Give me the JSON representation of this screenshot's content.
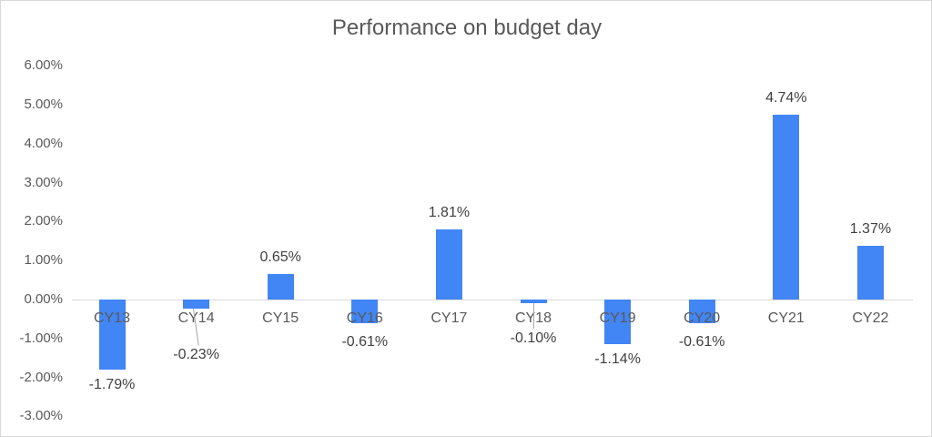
{
  "chart_data": {
    "type": "bar",
    "title": "Performance on budget day",
    "xlabel": "",
    "ylabel": "",
    "categories": [
      "CY13",
      "CY14",
      "CY15",
      "CY16",
      "CY17",
      "CY18",
      "CY19",
      "CY20",
      "CY21",
      "CY22"
    ],
    "values": [
      -1.79,
      -0.23,
      0.65,
      -0.61,
      1.81,
      -0.1,
      -1.14,
      -0.61,
      4.74,
      1.37
    ],
    "data_labels": [
      "-1.79%",
      "-0.23%",
      "0.65%",
      "-0.61%",
      "1.81%",
      "-0.10%",
      "-1.14%",
      "-0.61%",
      "4.74%",
      "1.37%"
    ],
    "yticks": [
      "6.00%",
      "5.00%",
      "4.00%",
      "3.00%",
      "2.00%",
      "1.00%",
      "0.00%",
      "-1.00%",
      "-2.00%",
      "-3.00%"
    ],
    "ylim": [
      -3,
      6
    ],
    "grid": false,
    "legend": null,
    "bar_color": "#4285f4"
  },
  "labels": {
    "title": "Performance on budget day",
    "yticks": [
      "6.00%",
      "5.00%",
      "4.00%",
      "3.00%",
      "2.00%",
      "1.00%",
      "0.00%",
      "-1.00%",
      "-2.00%",
      "-3.00%"
    ],
    "categories": [
      "CY13",
      "CY14",
      "CY15",
      "CY16",
      "CY17",
      "CY18",
      "CY19",
      "CY20",
      "CY21",
      "CY22"
    ],
    "data_labels": [
      "-1.79%",
      "-0.23%",
      "0.65%",
      "-0.61%",
      "1.81%",
      "-0.10%",
      "-1.14%",
      "-0.61%",
      "4.74%",
      "1.37%"
    ]
  }
}
